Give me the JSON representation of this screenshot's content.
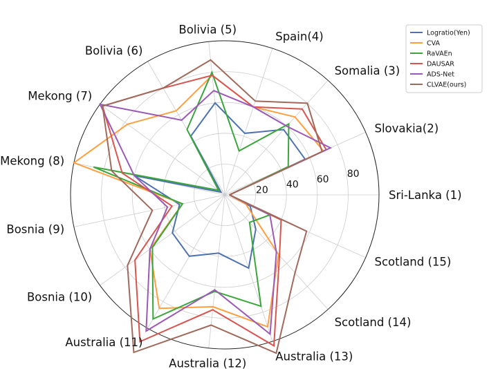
{
  "chart_data": {
    "type": "radar",
    "categories": [
      "Sri-Lanka (1)",
      "Slovakia(2)",
      "Somalia (3)",
      "Spain(4)",
      "Bolivia (5)",
      "Bolivia (6)",
      "Mekong (7)",
      "Mekong (8)",
      "Bosnia (9)",
      "Bosnia (10)",
      "Australia (11)",
      "Australia (12)",
      "Australia (13)",
      "Scotland (14)",
      "Scotland (15)"
    ],
    "rlim": [
      0,
      100
    ],
    "rticks": [
      20,
      40,
      60,
      80
    ],
    "rtick_labels": [
      "20",
      "40",
      "60",
      "80"
    ],
    "grid": true,
    "legend_position": "top-right",
    "series": [
      {
        "name": "Logratio(Yen)",
        "color": "#4c72b0",
        "values": [
          3,
          57,
          57,
          42,
          60,
          44,
          3,
          60,
          30,
          42,
          46,
          38,
          50,
          30,
          18
        ]
      },
      {
        "name": "CVA",
        "color": "#ff9f40",
        "values": [
          3,
          70,
          68,
          60,
          78,
          63,
          78,
          100,
          28,
          60,
          85,
          73,
          90,
          52,
          15
        ]
      },
      {
        "name": "RaVAEn",
        "color": "#3aa53a",
        "values": [
          3,
          45,
          62,
          30,
          80,
          49,
          5,
          87,
          28,
          58,
          93,
          63,
          76,
          24,
          32
        ]
      },
      {
        "name": "DAUSAR",
        "color": "#d9534f",
        "values": [
          3,
          72,
          75,
          60,
          78,
          80,
          98,
          68,
          35,
          72,
          110,
          75,
          103,
          53,
          40
        ]
      },
      {
        "name": "ADS-Net",
        "color": "#9b59b6",
        "values": [
          3,
          75,
          60,
          60,
          68,
          56,
          100,
          60,
          38,
          60,
          102,
          62,
          95,
          50,
          32
        ]
      },
      {
        "name": "CLVAE(ours)",
        "color": "#a0695a",
        "values": [
          3,
          69,
          80,
          64,
          88,
          80,
          98,
          75,
          48,
          78,
          118,
          85,
          108,
          68,
          58
        ]
      }
    ]
  }
}
